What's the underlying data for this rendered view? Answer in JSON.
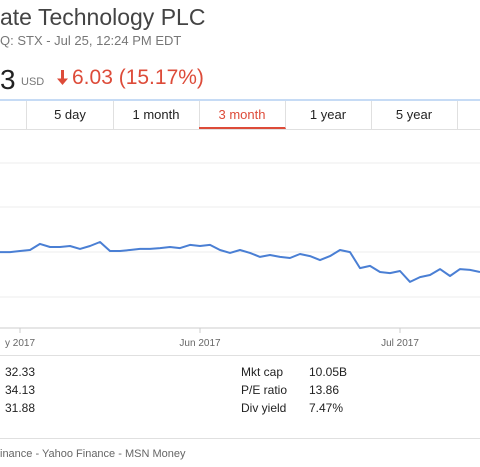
{
  "header": {
    "title": "ate Technology PLC",
    "subtitle": "Q: STX - Jul 25, 12:24 PM EDT",
    "price": "3",
    "currency": "USD",
    "change": "6.03 (15.17%)"
  },
  "tabs": [
    "5 day",
    "1 month",
    "3 month",
    "1 year",
    "5 year"
  ],
  "selected_tab": "3 month",
  "chart_data": {
    "type": "line",
    "categories": [
      null,
      null,
      "y 2017",
      null,
      null,
      null,
      null,
      null,
      null,
      null,
      null,
      null,
      null,
      null,
      null,
      null,
      null,
      null,
      null,
      null,
      "Jun 2017",
      null,
      null,
      null,
      null,
      null,
      null,
      null,
      null,
      null,
      null,
      null,
      null,
      null,
      null,
      null,
      null,
      null,
      null,
      null,
      "Jul 2017",
      null,
      null,
      null,
      null,
      null,
      null,
      null,
      null
    ],
    "series": [
      {
        "color": "#4a7fd4",
        "values": [
          37.1,
          37.1,
          37.6,
          38.1,
          41.0,
          39.5,
          39.5,
          40.0,
          38.6,
          40.0,
          41.9,
          37.6,
          37.6,
          38.1,
          38.6,
          38.6,
          39.0,
          39.5,
          39.0,
          40.5,
          40.0,
          40.5,
          38.1,
          36.7,
          38.1,
          36.7,
          34.8,
          35.7,
          34.8,
          34.3,
          36.2,
          35.2,
          33.3,
          35.2,
          38.1,
          37.1,
          29.5,
          30.5,
          27.6,
          27.1,
          28.1,
          22.9,
          25.2,
          26.2,
          29.0,
          25.7,
          29.0,
          28.6,
          27.6
        ]
      }
    ],
    "ylim": [
      0,
      100
    ]
  },
  "stats_left": [
    "32.33",
    "34.13",
    "31.88"
  ],
  "stats_right": [
    {
      "label": "Mkt cap",
      "value": "10.05B"
    },
    {
      "label": "P/E ratio",
      "value": "13.86"
    },
    {
      "label": "Div yield",
      "value": "7.47%"
    }
  ],
  "footer": "inance - Yahoo Finance - MSN Money"
}
